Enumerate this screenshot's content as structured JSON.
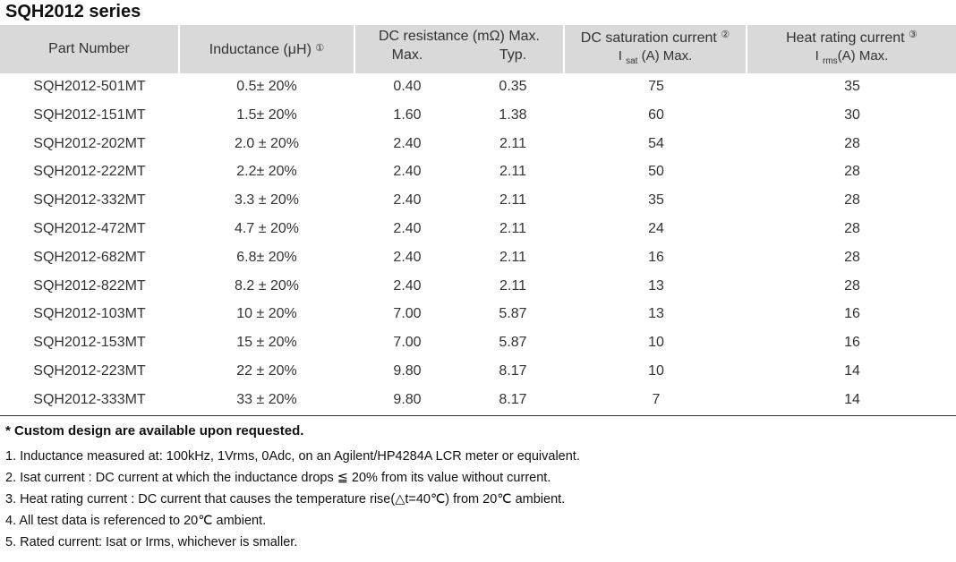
{
  "title": "SQH2012 series",
  "headers": {
    "part": "Part Number",
    "inductance": "Inductance (μH)",
    "inductance_note": "①",
    "dcr": "DC resistance (mΩ) Max.",
    "dcr_max": "Max.",
    "dcr_typ": "Typ.",
    "sat": "DC saturation current",
    "sat_note": "②",
    "sat_i": "I",
    "sat_sub": "sat",
    "sat_unit": "(A)  Max.",
    "heat": "Heat rating current",
    "heat_note": "③",
    "heat_i": "I",
    "heat_sub": "rms",
    "heat_unit": "(A)  Max."
  },
  "rows": [
    [
      "SQH2012-501MT",
      "0.5± 20%",
      "0.40",
      "0.35",
      "75",
      "35"
    ],
    [
      "SQH2012-151MT",
      "1.5± 20%",
      "1.60",
      "1.38",
      "60",
      "30"
    ],
    [
      "SQH2012-202MT",
      "2.0 ± 20%",
      "2.40",
      "2.11",
      "54",
      "28"
    ],
    [
      "SQH2012-222MT",
      "2.2± 20%",
      "2.40",
      "2.11",
      "50",
      "28"
    ],
    [
      "SQH2012-332MT",
      "3.3 ± 20%",
      "2.40",
      "2.11",
      "35",
      "28"
    ],
    [
      "SQH2012-472MT",
      "4.7 ± 20%",
      "2.40",
      "2.11",
      "24",
      "28"
    ],
    [
      "SQH2012-682MT",
      "6.8± 20%",
      "2.40",
      "2.11",
      "16",
      "28"
    ],
    [
      "SQH2012-822MT",
      "8.2 ± 20%",
      "2.40",
      "2.11",
      "13",
      "28"
    ],
    [
      "SQH2012-103MT",
      "10 ± 20%",
      "7.00",
      "5.87",
      "13",
      "16"
    ],
    [
      "SQH2012-153MT",
      "15 ± 20%",
      "7.00",
      "5.87",
      "10",
      "16"
    ],
    [
      "SQH2012-223MT",
      "22 ± 20%",
      "9.80",
      "8.17",
      "10",
      "14"
    ],
    [
      "SQH2012-333MT",
      "33 ± 20%",
      "9.80",
      "8.17",
      "7",
      "14"
    ]
  ],
  "custom_note": "* Custom design are available upon requested.",
  "notes": [
    "1. Inductance measured at: 100kHz, 1Vrms, 0Adc, on an Agilent/HP4284A LCR meter or equivalent.",
    "2. Isat current : DC current at which the inductance drops ≦ 20% from its value without current.",
    "3. Heat rating current : DC current that causes the temperature rise(△t=40℃) from 20℃ ambient.",
    "4. All test data is referenced to 20℃ ambient.",
    "5. Rated current: Isat or Irms, whichever is smaller."
  ]
}
